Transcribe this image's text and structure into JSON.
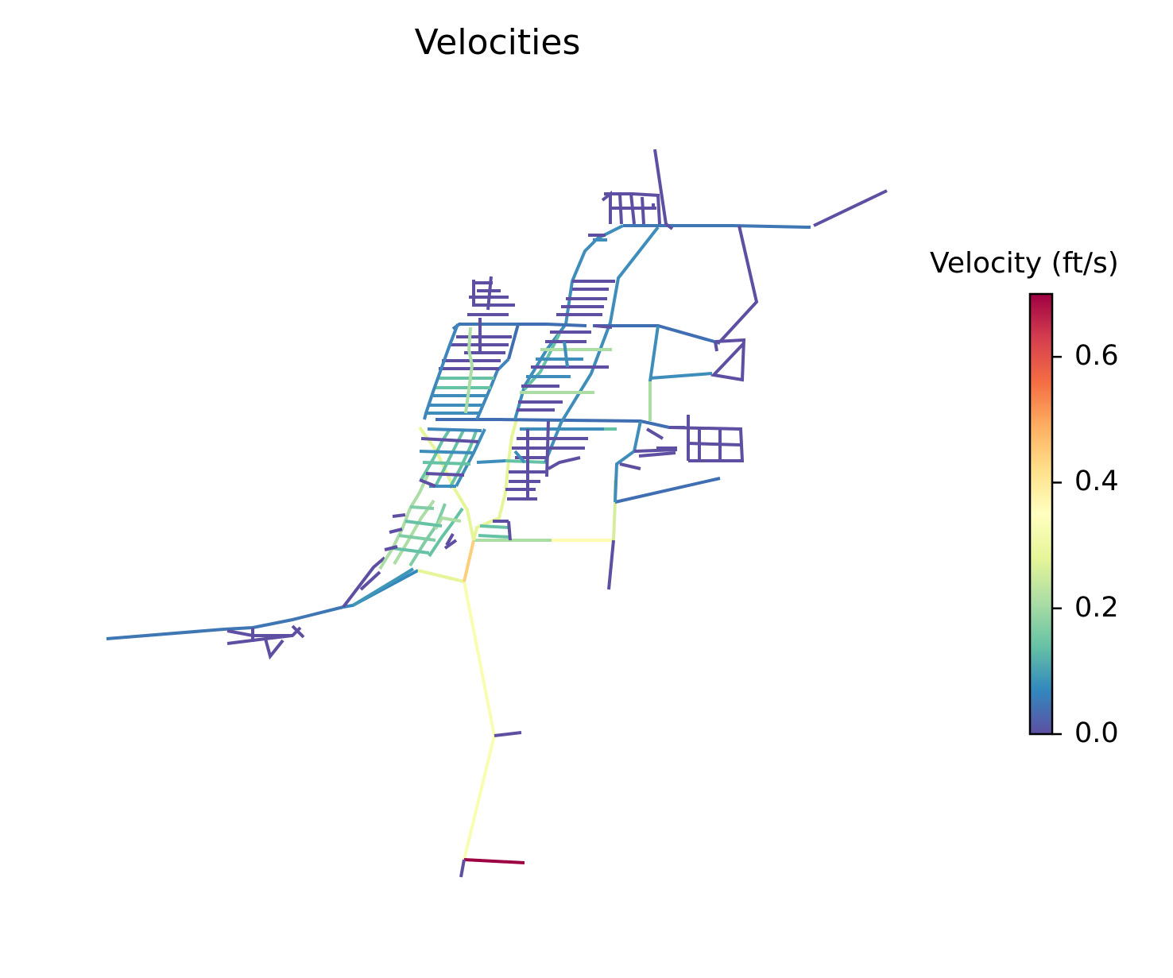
{
  "chart_data": {
    "type": "network-map",
    "title": "Velocities",
    "colorbar": {
      "label": "Velocity (ft/s)",
      "range": [
        0.0,
        0.7
      ],
      "ticks": [
        "0.0",
        "0.2",
        "0.4",
        "0.6"
      ],
      "tick_values": [
        0.0,
        0.2,
        0.4,
        0.6
      ],
      "colormap": "Spectral_r",
      "colors": [
        "#5e4fa2",
        "#3288bd",
        "#66c2a5",
        "#abdda4",
        "#e6f598",
        "#ffffbf",
        "#fee08b",
        "#fdae61",
        "#f46d43",
        "#d53e4f",
        "#9e0142"
      ]
    },
    "legend_position": "right",
    "axes_visible": false,
    "grid": false
  }
}
